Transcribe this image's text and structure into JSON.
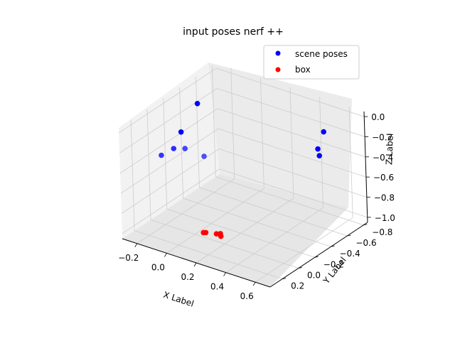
{
  "chart_data": {
    "type": "scatter",
    "projection": "3d",
    "title": "input poses nerf ++",
    "xlabel": "X Label",
    "ylabel": "Y Label",
    "zlabel": "Z Label",
    "xlim": [
      -0.3,
      0.7
    ],
    "ylim": [
      -0.85,
      0.35
    ],
    "zlim": [
      -1.05,
      0.05
    ],
    "xticks": [
      "−0.2",
      "0.0",
      "0.2",
      "0.4",
      "0.6"
    ],
    "yticks": [
      "−0.8",
      "−0.6",
      "−0.4",
      "−0.2",
      "0.0",
      "0.2"
    ],
    "zticks": [
      "−1.0",
      "−0.8",
      "−0.6",
      "−0.4",
      "−0.2",
      "0.0"
    ],
    "grid": true,
    "legend_position": "top-right",
    "series": [
      {
        "name": "scene poses",
        "color": "#0000ff",
        "points": [
          {
            "x": -0.25,
            "y": -0.52,
            "z": -0.15
          },
          {
            "x": -0.13,
            "y": -0.1,
            "z": -0.15
          },
          {
            "x": -0.06,
            "y": 0.27,
            "z": -0.15
          },
          {
            "x": 0.02,
            "y": 0.26,
            "z": -0.05
          },
          {
            "x": 0.12,
            "y": 0.3,
            "z": 0.02
          },
          {
            "x": 0.55,
            "y": -0.62,
            "z": -0.1
          },
          {
            "x": 0.62,
            "y": -0.42,
            "z": -0.13
          },
          {
            "x": 0.68,
            "y": -0.33,
            "z": -0.12
          },
          {
            "x": 0.26,
            "y": 0.32,
            "z": 0.02
          }
        ]
      },
      {
        "name": "box",
        "color": "#ff0000",
        "points": [
          {
            "x": 0.16,
            "y": 0.18,
            "z": -0.86
          },
          {
            "x": 0.17,
            "y": 0.17,
            "z": -0.86
          },
          {
            "x": 0.22,
            "y": 0.13,
            "z": -0.87
          },
          {
            "x": 0.24,
            "y": 0.12,
            "z": -0.87
          },
          {
            "x": 0.25,
            "y": 0.13,
            "z": -0.88
          },
          {
            "x": 0.23,
            "y": 0.1,
            "z": -0.88
          }
        ]
      }
    ]
  }
}
